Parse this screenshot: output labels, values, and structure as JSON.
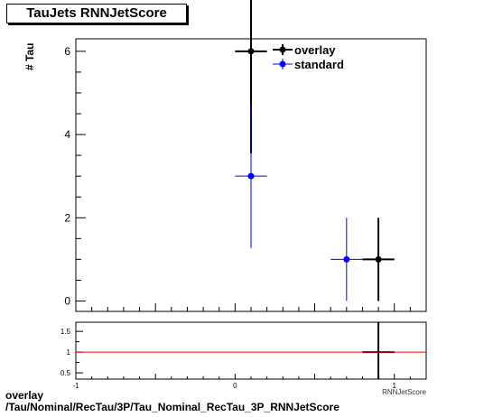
{
  "chart_data": [
    {
      "type": "scatter",
      "title": "TauJets RNNJetScore",
      "ylabel": "# Tau",
      "xlabel": "RNNJetScore",
      "xlim": [
        -1,
        1.2
      ],
      "ylim": [
        -0.25,
        6.3
      ],
      "yticks": [
        0,
        2,
        4,
        6
      ],
      "legend_position": "top-right",
      "series": [
        {
          "name": "overlay",
          "color": "#000000",
          "points": [
            {
              "x": 0.1,
              "xerr": 0.1,
              "y": 6,
              "yerr": 2.45
            },
            {
              "x": 0.9,
              "xerr": 0.1,
              "y": 1,
              "yerr": 1
            }
          ]
        },
        {
          "name": "standard",
          "color": "#0000ff",
          "points": [
            {
              "x": 0.1,
              "xerr": 0.1,
              "y": 3,
              "yerr": 1.73
            },
            {
              "x": 0.7,
              "xerr": 0.1,
              "y": 1,
              "yerr": 1
            }
          ]
        }
      ]
    },
    {
      "type": "line",
      "ylim": [
        0.35,
        1.72
      ],
      "yticks": [
        0.5,
        1,
        1.5
      ],
      "xticks": [
        -1,
        0,
        1
      ],
      "reference_line": 1,
      "ratio_color": "#8b0000",
      "ratio_segment": {
        "x0": 0.8,
        "x1": 1.0,
        "y": 1
      },
      "marker_x": 0.9
    }
  ],
  "caption": {
    "line1": "overlay",
    "line2": "/Tau/Nominal/RecTau/3P/Tau_Nominal_RecTau_3P_RNNJetScore"
  }
}
